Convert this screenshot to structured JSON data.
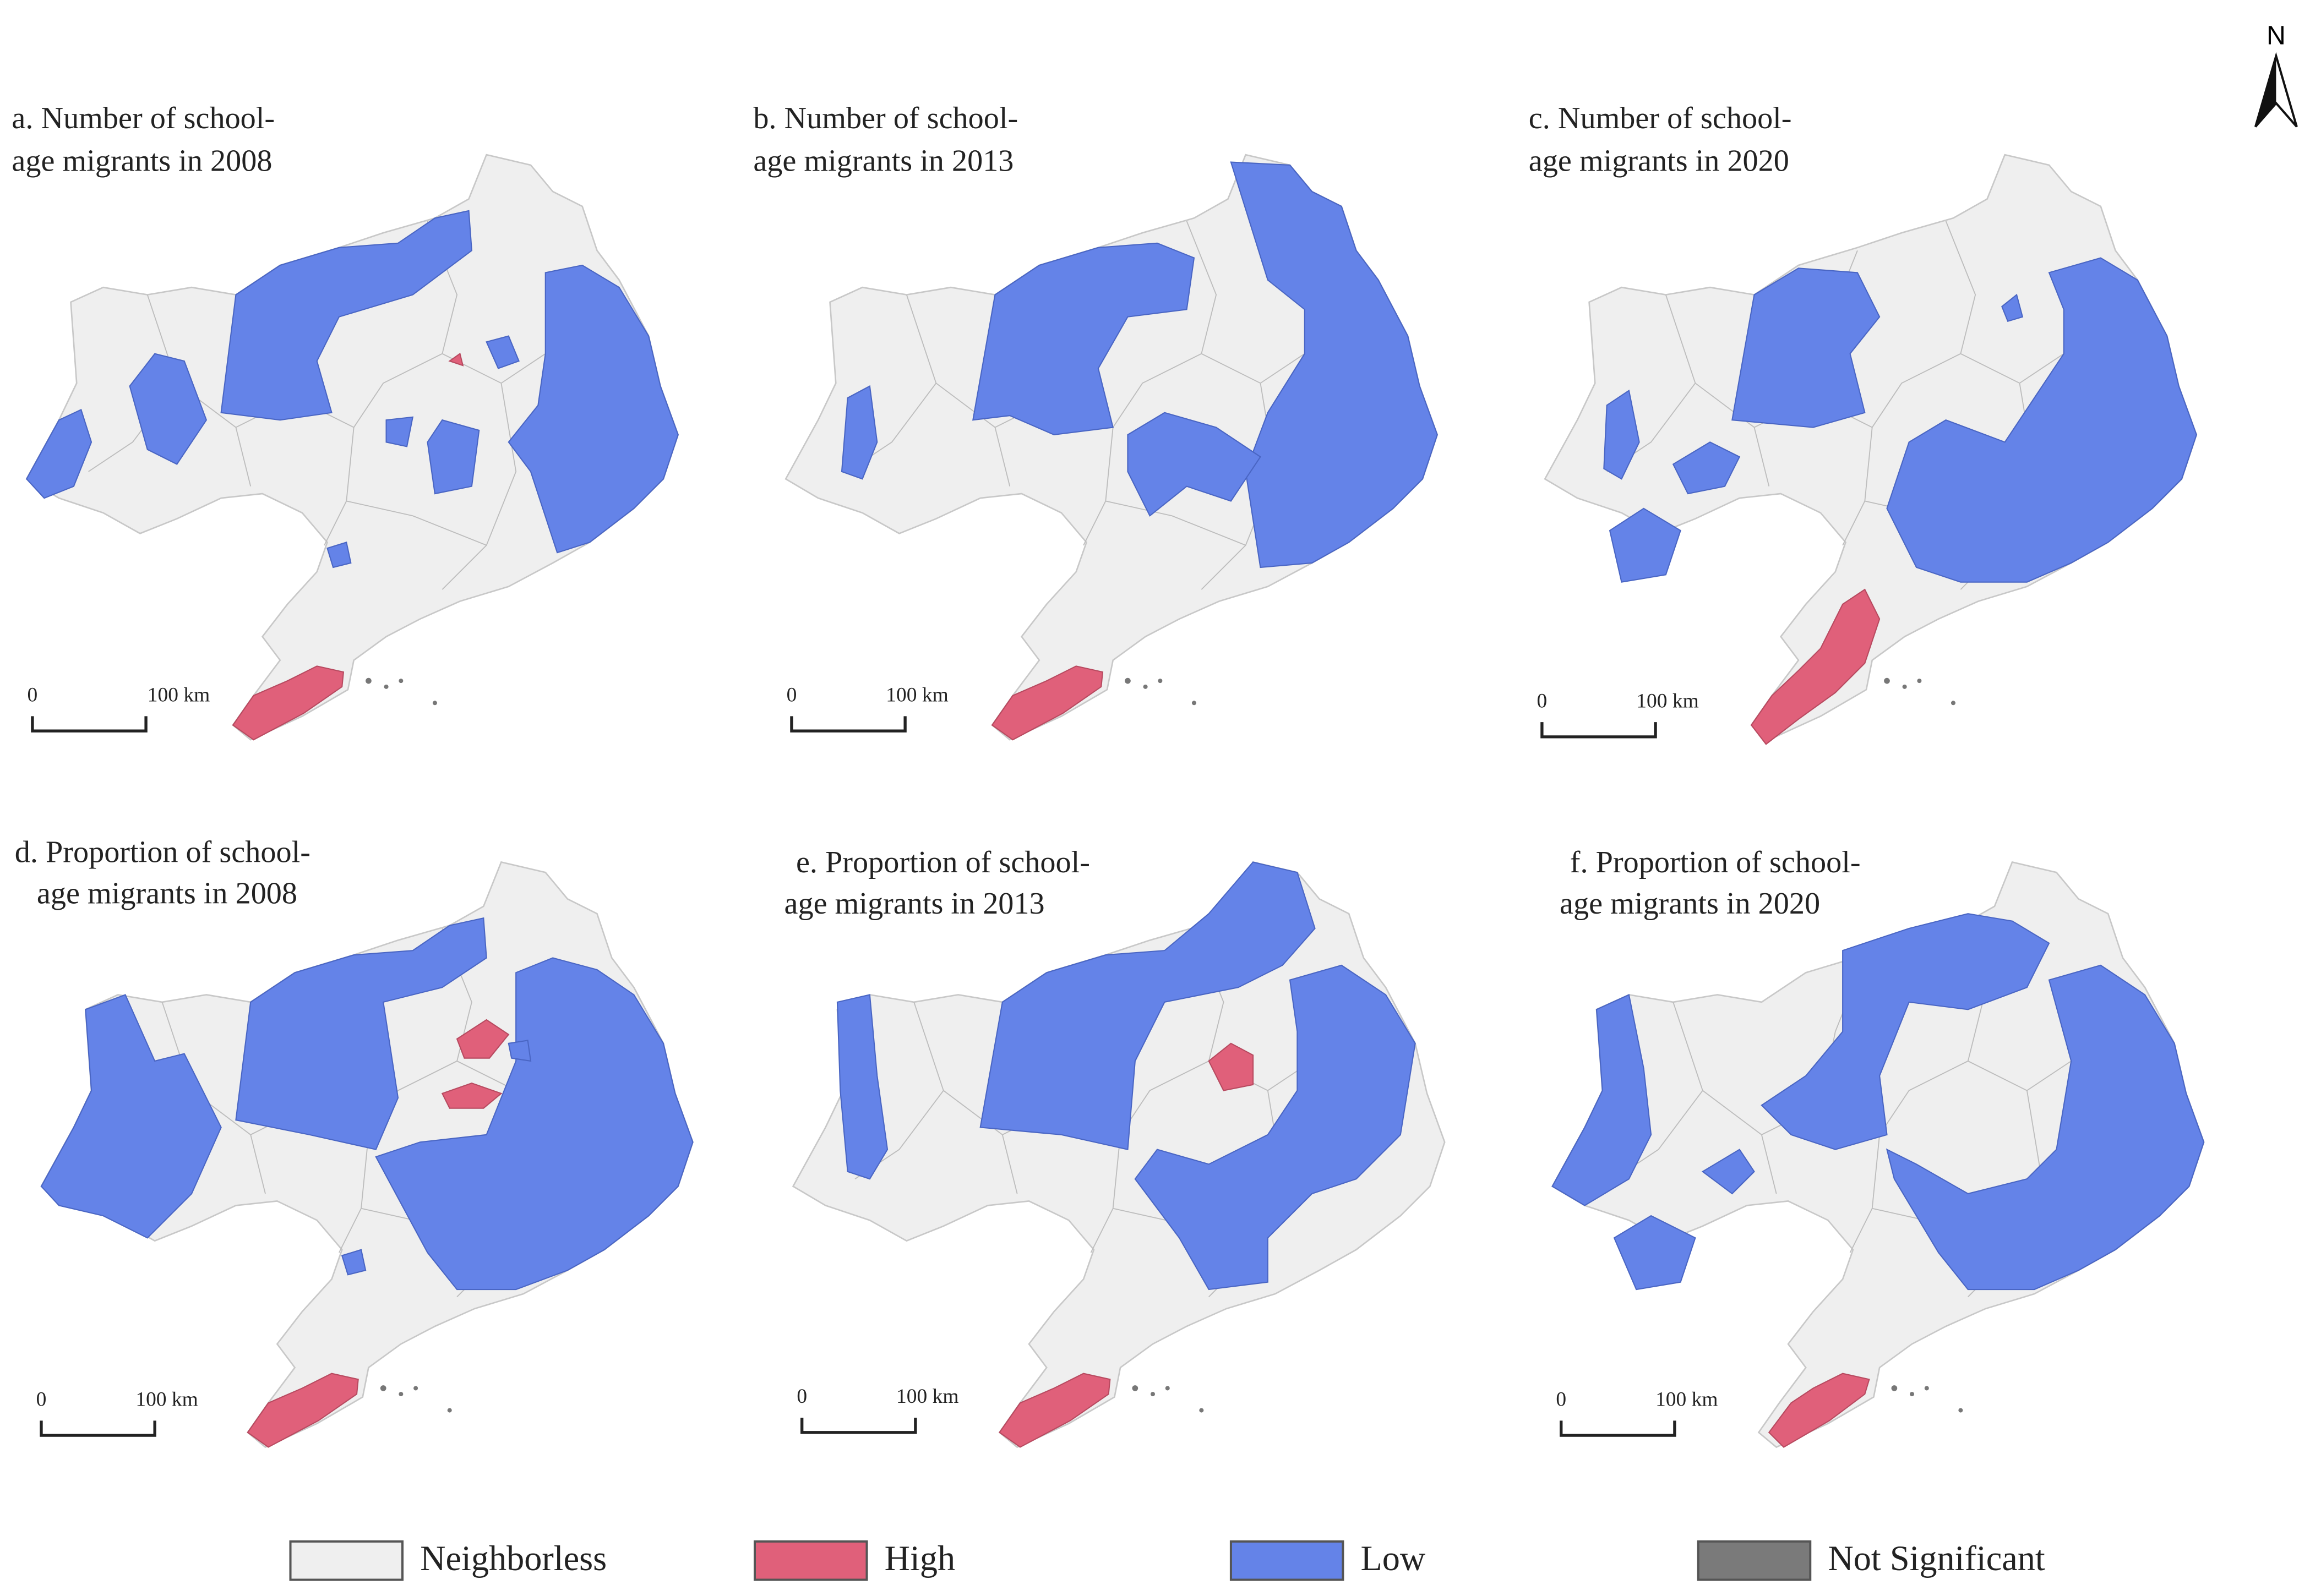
{
  "north": "N",
  "panels": [
    {
      "title_line1": "a. Number of school-",
      "title_line2": "age migrants in 2008",
      "scale_start": "0",
      "scale_end": "100 km"
    },
    {
      "title_line1": "b. Number of school-",
      "title_line2": "age migrants in 2013",
      "scale_start": "0",
      "scale_end": "100 km"
    },
    {
      "title_line1": "c. Number of school-",
      "title_line2": "age migrants in 2020",
      "scale_start": "0",
      "scale_end": "100 km"
    },
    {
      "title_line1": "d. Proportion of school-",
      "title_line2": "age migrants in 2008",
      "scale_start": "0",
      "scale_end": "100 km"
    },
    {
      "title_line1": "e. Proportion of school-",
      "title_line2": "age migrants in 2013",
      "scale_start": "0",
      "scale_end": "100 km"
    },
    {
      "title_line1": "f. Proportion of school-",
      "title_line2": "age migrants in 2020",
      "scale_start": "0",
      "scale_end": "100 km"
    }
  ],
  "legend": [
    {
      "label": "Neighborless",
      "color": "#efefef"
    },
    {
      "label": "High",
      "color": "#e0607a"
    },
    {
      "label": "Low",
      "color": "#6483e8"
    },
    {
      "label": "Not Significant",
      "color": "#7a7a7a"
    }
  ]
}
